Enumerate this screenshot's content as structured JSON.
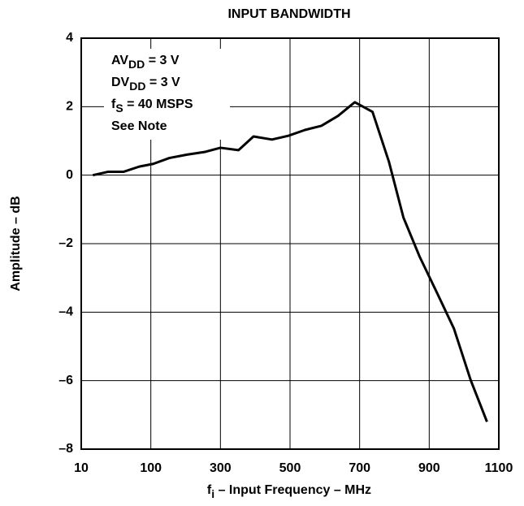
{
  "chart_data": {
    "type": "line",
    "title": "INPUT BANDWIDTH",
    "x_label": {
      "main": "f",
      "sub": "i",
      "rest": " – Input Frequency – MHz"
    },
    "y_label": "Amplitude – dB",
    "annotations": [
      {
        "main": "AV",
        "sub": "DD",
        "rest": " = 3 V"
      },
      {
        "main": "DV",
        "sub": "DD",
        "rest": " = 3 V"
      },
      {
        "main": "f",
        "sub": "S",
        "rest": " = 40  MSPS"
      },
      {
        "main": "See Note",
        "sub": "",
        "rest": ""
      }
    ],
    "x": [
      25,
      45,
      65,
      85,
      107,
      153,
      204,
      256,
      300,
      352,
      395,
      448,
      495,
      543,
      590,
      638,
      686,
      737,
      784,
      826,
      872,
      924,
      971,
      1019,
      1066
    ],
    "series": [
      {
        "name": "Amplitude",
        "color": "#000000",
        "values": [
          0.0,
          0.1,
          0.1,
          0.25,
          0.33,
          0.5,
          0.6,
          0.68,
          0.8,
          0.73,
          1.13,
          1.04,
          1.15,
          1.32,
          1.44,
          1.73,
          2.13,
          1.85,
          0.4,
          -1.24,
          -2.37,
          -3.47,
          -4.48,
          -5.98,
          -7.2
        ]
      }
    ],
    "xlim": [
      10,
      1100
    ],
    "xticks": [
      10,
      100,
      300,
      500,
      700,
      900,
      1100
    ],
    "ylim": [
      -8,
      4
    ],
    "yticks": [
      {
        "value": -8,
        "label": "–8"
      },
      {
        "value": -6,
        "label": "–6"
      },
      {
        "value": -4,
        "label": "–4"
      },
      {
        "value": -2,
        "label": "–2"
      },
      0,
      2,
      4
    ],
    "grid": true
  }
}
